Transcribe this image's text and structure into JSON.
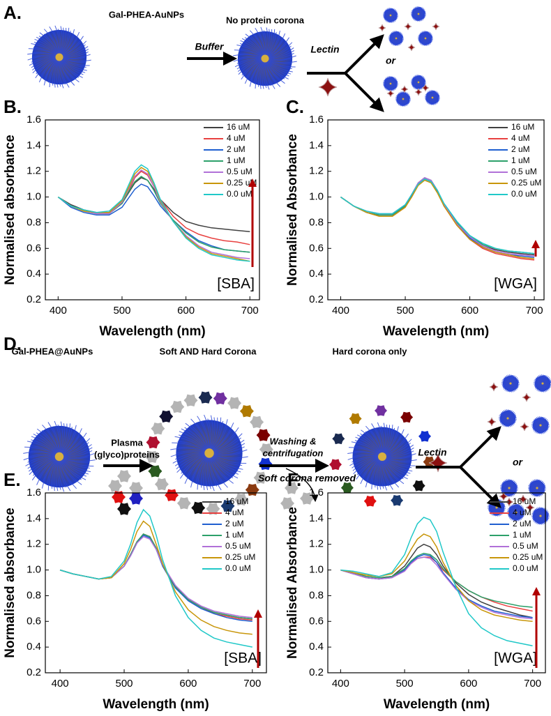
{
  "diagram_a": {
    "label": "A.",
    "particle": "Gal-PHEA-AuNPs",
    "after": "No protein corona",
    "buffer": "Buffer",
    "lectin": "Lectin",
    "or": "or"
  },
  "diagram_d": {
    "label": "D.",
    "particle": "Gal-PHEA@AuNPs",
    "soft_hard": "Soft AND Hard Corona",
    "hard_only": "Hard corona only",
    "plasma": "Plasma",
    "glyco": "(glyco)proteins",
    "washing": "Washing &",
    "centrifugation": "centrifugation",
    "lectin": "Lectin",
    "or": "or",
    "removed": "Soft corona removed"
  },
  "chart_data": [
    {
      "type": "line",
      "panel": "B.",
      "annotation": "[SBA]",
      "xlabel": "Wavelength (nm)",
      "ylabel": "Normalised absorbance",
      "xlim": [
        380,
        715
      ],
      "xticks": [
        400,
        500,
        600,
        700
      ],
      "ylim": [
        0.2,
        1.6
      ],
      "yticks": [
        0.2,
        0.4,
        0.6,
        0.8,
        {
          "value": 1,
          "label": "1.0"
        },
        1.2,
        1.4,
        1.6
      ],
      "x": [
        400,
        420,
        440,
        460,
        480,
        500,
        510,
        520,
        530,
        540,
        550,
        560,
        580,
        600,
        620,
        640,
        660,
        680,
        700
      ],
      "series": [
        {
          "name": "16 uM",
          "color": "#404040",
          "values": [
            1.0,
            0.94,
            0.9,
            0.88,
            0.88,
            0.95,
            1.03,
            1.11,
            1.15,
            1.13,
            1.06,
            0.98,
            0.88,
            0.81,
            0.78,
            0.76,
            0.75,
            0.74,
            0.73
          ]
        },
        {
          "name": "4 uM",
          "color": "#e8403f",
          "values": [
            1.0,
            0.93,
            0.89,
            0.87,
            0.87,
            0.95,
            1.04,
            1.15,
            1.2,
            1.17,
            1.08,
            0.98,
            0.85,
            0.76,
            0.71,
            0.68,
            0.66,
            0.65,
            0.63
          ]
        },
        {
          "name": "2 uM",
          "color": "#1f5fd0",
          "values": [
            1.0,
            0.92,
            0.88,
            0.86,
            0.86,
            0.92,
            0.99,
            1.06,
            1.1,
            1.08,
            1.01,
            0.93,
            0.82,
            0.73,
            0.66,
            0.62,
            0.59,
            0.58,
            0.57
          ]
        },
        {
          "name": "1 uM",
          "color": "#2ca06a",
          "values": [
            1.0,
            0.93,
            0.89,
            0.87,
            0.87,
            0.95,
            1.04,
            1.12,
            1.16,
            1.13,
            1.05,
            0.95,
            0.82,
            0.72,
            0.65,
            0.61,
            0.59,
            0.58,
            0.57
          ]
        },
        {
          "name": "0.5 uM",
          "color": "#b070d8",
          "values": [
            1.0,
            0.93,
            0.89,
            0.87,
            0.87,
            0.96,
            1.06,
            1.16,
            1.21,
            1.18,
            1.08,
            0.96,
            0.81,
            0.7,
            0.62,
            0.57,
            0.55,
            0.53,
            0.52
          ]
        },
        {
          "name": "0.25 uM",
          "color": "#c8960a",
          "values": [
            1.0,
            0.93,
            0.89,
            0.88,
            0.88,
            0.97,
            1.07,
            1.18,
            1.23,
            1.2,
            1.1,
            0.97,
            0.81,
            0.69,
            0.61,
            0.56,
            0.54,
            0.52,
            0.5
          ]
        },
        {
          "name": "0.0 uM",
          "color": "#20c8c8",
          "values": [
            1.0,
            0.93,
            0.9,
            0.88,
            0.89,
            0.98,
            1.09,
            1.2,
            1.25,
            1.22,
            1.11,
            0.98,
            0.81,
            0.68,
            0.6,
            0.55,
            0.53,
            0.51,
            0.5
          ]
        }
      ]
    },
    {
      "type": "line",
      "panel": "C.",
      "annotation": "[WGA]",
      "xlabel": "Wavelength (nm)",
      "ylabel": "Normalised Absorbance",
      "xlim": [
        380,
        715
      ],
      "xticks": [
        400,
        500,
        600,
        700
      ],
      "ylim": [
        0.2,
        1.6
      ],
      "yticks": [
        0.2,
        0.4,
        0.6,
        0.8,
        {
          "value": 1,
          "label": "1.0"
        },
        1.2,
        1.4,
        1.6
      ],
      "x": [
        400,
        420,
        440,
        460,
        480,
        500,
        510,
        520,
        530,
        540,
        550,
        560,
        580,
        600,
        620,
        640,
        660,
        680,
        700
      ],
      "series": [
        {
          "name": "16 uM",
          "color": "#404040",
          "values": [
            1.0,
            0.93,
            0.88,
            0.86,
            0.86,
            0.93,
            1.01,
            1.1,
            1.14,
            1.12,
            1.04,
            0.94,
            0.8,
            0.69,
            0.62,
            0.59,
            0.57,
            0.56,
            0.55
          ]
        },
        {
          "name": "4 uM",
          "color": "#e8403f",
          "values": [
            1.0,
            0.93,
            0.88,
            0.85,
            0.85,
            0.92,
            1.01,
            1.1,
            1.14,
            1.12,
            1.04,
            0.93,
            0.78,
            0.67,
            0.6,
            0.56,
            0.54,
            0.52,
            0.51
          ]
        },
        {
          "name": "2 uM",
          "color": "#1f5fd0",
          "values": [
            1.0,
            0.93,
            0.88,
            0.86,
            0.86,
            0.93,
            1.01,
            1.1,
            1.14,
            1.12,
            1.04,
            0.93,
            0.79,
            0.68,
            0.61,
            0.57,
            0.55,
            0.54,
            0.53
          ]
        },
        {
          "name": "1 uM",
          "color": "#2ca06a",
          "values": [
            1.0,
            0.93,
            0.88,
            0.86,
            0.86,
            0.93,
            1.02,
            1.11,
            1.15,
            1.13,
            1.05,
            0.94,
            0.8,
            0.7,
            0.63,
            0.6,
            0.58,
            0.57,
            0.56
          ]
        },
        {
          "name": "0.5 uM",
          "color": "#b070d8",
          "values": [
            1.0,
            0.93,
            0.89,
            0.87,
            0.87,
            0.94,
            1.02,
            1.11,
            1.15,
            1.13,
            1.05,
            0.94,
            0.79,
            0.69,
            0.62,
            0.58,
            0.56,
            0.55,
            0.54
          ]
        },
        {
          "name": "0.25 uM",
          "color": "#c8960a",
          "values": [
            1.0,
            0.93,
            0.88,
            0.85,
            0.85,
            0.92,
            1.0,
            1.09,
            1.13,
            1.11,
            1.03,
            0.93,
            0.78,
            0.67,
            0.61,
            0.57,
            0.55,
            0.53,
            0.52
          ]
        },
        {
          "name": "0.0 uM",
          "color": "#20c8c8",
          "values": [
            1.0,
            0.93,
            0.89,
            0.87,
            0.87,
            0.94,
            1.02,
            1.1,
            1.14,
            1.12,
            1.05,
            0.95,
            0.81,
            0.7,
            0.64,
            0.6,
            0.58,
            0.57,
            0.56
          ]
        }
      ]
    },
    {
      "type": "line",
      "panel": "E.",
      "annotation": "[SBA]",
      "xlabel": "Wavelength (nm)",
      "ylabel": "Normalised absorbance",
      "xlim": [
        377,
        722
      ],
      "xticks": [
        400,
        500,
        600,
        700
      ],
      "ylim": [
        0.2,
        1.6
      ],
      "yticks": [
        0.2,
        0.4,
        0.6,
        0.8,
        {
          "value": 1,
          "label": "1.0"
        },
        1.2,
        1.4,
        1.6
      ],
      "x": [
        400,
        420,
        440,
        460,
        480,
        500,
        510,
        520,
        530,
        540,
        550,
        560,
        580,
        600,
        620,
        640,
        660,
        680,
        700
      ],
      "series": [
        {
          "name": "16 uM",
          "color": "#404040",
          "values": [
            1.0,
            0.97,
            0.95,
            0.93,
            0.94,
            1.03,
            1.12,
            1.22,
            1.28,
            1.26,
            1.17,
            1.04,
            0.87,
            0.77,
            0.71,
            0.67,
            0.65,
            0.63,
            0.62
          ]
        },
        {
          "name": "4 uM",
          "color": "#e8403f",
          "values": [
            1.0,
            0.97,
            0.95,
            0.93,
            0.94,
            1.03,
            1.12,
            1.22,
            1.28,
            1.26,
            1.17,
            1.04,
            0.87,
            0.77,
            0.71,
            0.66,
            0.64,
            0.62,
            0.61
          ]
        },
        {
          "name": "2 uM",
          "color": "#1f5fd0",
          "values": [
            1.0,
            0.97,
            0.95,
            0.93,
            0.94,
            1.03,
            1.11,
            1.21,
            1.27,
            1.25,
            1.16,
            1.03,
            0.86,
            0.76,
            0.7,
            0.66,
            0.63,
            0.61,
            0.6
          ]
        },
        {
          "name": "1 uM",
          "color": "#2ca06a",
          "values": [
            1.0,
            0.97,
            0.95,
            0.93,
            0.94,
            1.03,
            1.12,
            1.22,
            1.28,
            1.26,
            1.17,
            1.04,
            0.87,
            0.77,
            0.71,
            0.67,
            0.65,
            0.63,
            0.62
          ]
        },
        {
          "name": "0.5 uM",
          "color": "#b070d8",
          "values": [
            1.0,
            0.97,
            0.95,
            0.93,
            0.94,
            1.03,
            1.11,
            1.21,
            1.26,
            1.24,
            1.16,
            1.04,
            0.88,
            0.78,
            0.72,
            0.68,
            0.66,
            0.64,
            0.63
          ]
        },
        {
          "name": "0.25 uM",
          "color": "#c8960a",
          "values": [
            1.0,
            0.97,
            0.95,
            0.93,
            0.94,
            1.05,
            1.16,
            1.3,
            1.38,
            1.34,
            1.2,
            1.05,
            0.83,
            0.69,
            0.61,
            0.56,
            0.53,
            0.51,
            0.5
          ]
        },
        {
          "name": "0.0 uM",
          "color": "#20c8c8",
          "values": [
            1.0,
            0.97,
            0.95,
            0.93,
            0.95,
            1.07,
            1.2,
            1.37,
            1.47,
            1.42,
            1.27,
            1.08,
            0.8,
            0.63,
            0.53,
            0.47,
            0.44,
            0.42,
            0.4
          ]
        }
      ]
    },
    {
      "type": "line",
      "panel": "F.",
      "annotation": "[WGA]",
      "xlabel": "Wavelength (nm)",
      "ylabel": "Normalised Absorbance",
      "xlim": [
        380,
        720
      ],
      "xticks": [
        400,
        500,
        600,
        700
      ],
      "ylim": [
        0.2,
        1.6
      ],
      "yticks": [
        0.2,
        0.4,
        0.6,
        0.8,
        {
          "value": 1,
          "label": "1.0"
        },
        1.2,
        1.4,
        1.6
      ],
      "x": [
        400,
        420,
        440,
        460,
        480,
        500,
        510,
        520,
        530,
        540,
        550,
        560,
        580,
        600,
        620,
        640,
        660,
        680,
        700
      ],
      "series": [
        {
          "name": "16 uM",
          "color": "#404040",
          "values": [
            1.0,
            0.97,
            0.94,
            0.93,
            0.95,
            1.03,
            1.1,
            1.17,
            1.2,
            1.18,
            1.12,
            1.03,
            0.9,
            0.81,
            0.75,
            0.71,
            0.68,
            0.65,
            0.63
          ]
        },
        {
          "name": "4 uM",
          "color": "#e8403f",
          "values": [
            1.0,
            0.98,
            0.95,
            0.94,
            0.95,
            1.0,
            1.05,
            1.09,
            1.1,
            1.1,
            1.06,
            1.0,
            0.91,
            0.84,
            0.79,
            0.75,
            0.72,
            0.7,
            0.68
          ]
        },
        {
          "name": "2 uM",
          "color": "#1f5fd0",
          "values": [
            1.0,
            0.97,
            0.94,
            0.93,
            0.94,
            1.0,
            1.06,
            1.1,
            1.12,
            1.11,
            1.06,
            0.98,
            0.86,
            0.77,
            0.72,
            0.68,
            0.66,
            0.64,
            0.63
          ]
        },
        {
          "name": "1 uM",
          "color": "#2ca06a",
          "values": [
            1.0,
            0.98,
            0.95,
            0.94,
            0.95,
            1.01,
            1.07,
            1.11,
            1.13,
            1.12,
            1.08,
            1.01,
            0.91,
            0.84,
            0.79,
            0.76,
            0.74,
            0.72,
            0.71
          ]
        },
        {
          "name": "0.5 uM",
          "color": "#b070d8",
          "values": [
            1.0,
            0.97,
            0.94,
            0.93,
            0.94,
            0.99,
            1.05,
            1.09,
            1.1,
            1.09,
            1.04,
            0.97,
            0.85,
            0.76,
            0.71,
            0.67,
            0.65,
            0.63,
            0.62
          ]
        },
        {
          "name": "0.25 uM",
          "color": "#c8960a",
          "values": [
            1.0,
            0.98,
            0.96,
            0.95,
            0.97,
            1.07,
            1.16,
            1.24,
            1.28,
            1.26,
            1.18,
            1.06,
            0.88,
            0.76,
            0.69,
            0.65,
            0.63,
            0.61,
            0.6
          ]
        },
        {
          "name": "0.0 uM",
          "color": "#20c8c8",
          "values": [
            1.0,
            0.99,
            0.97,
            0.95,
            0.98,
            1.12,
            1.25,
            1.36,
            1.41,
            1.39,
            1.3,
            1.14,
            0.87,
            0.66,
            0.55,
            0.49,
            0.45,
            0.43,
            0.41
          ]
        }
      ]
    }
  ]
}
